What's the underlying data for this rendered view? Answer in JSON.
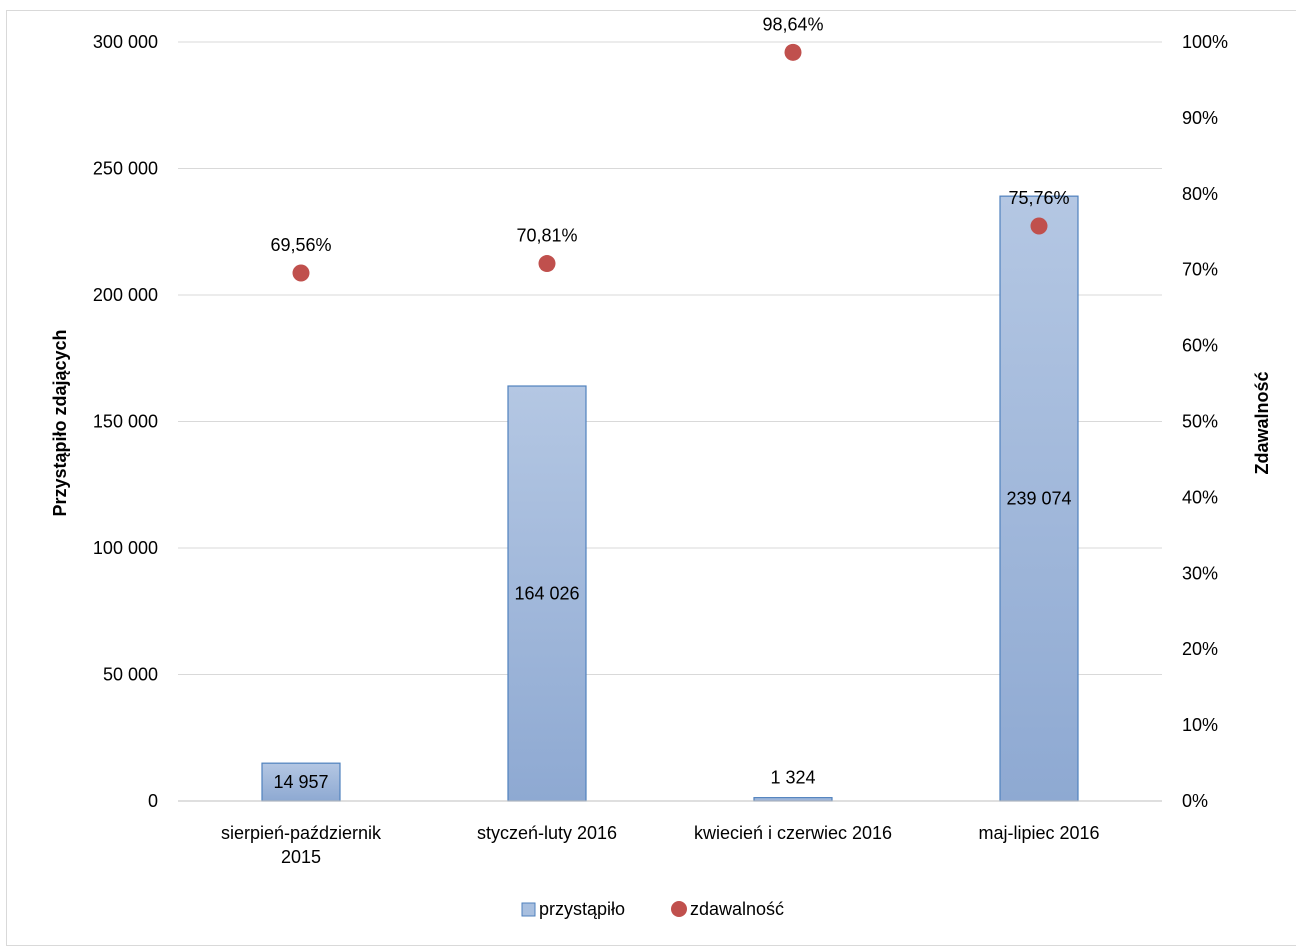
{
  "chart_data": {
    "type": "bar",
    "categories": [
      [
        "sierpień-październik",
        "2015"
      ],
      [
        "styczeń-luty 2016"
      ],
      [
        "kwiecień i czerwiec 2016"
      ],
      [
        "maj-lipiec 2016"
      ]
    ],
    "series": [
      {
        "name": "przystąpiło",
        "type": "bar",
        "axis": "left",
        "values": [
          14957,
          164026,
          1324,
          239074
        ],
        "labels": [
          "14 957",
          "164 026",
          "1 324",
          "239 074"
        ],
        "color": "#95b3d7"
      },
      {
        "name": "zdawalność",
        "type": "scatter",
        "axis": "right",
        "values": [
          69.56,
          70.81,
          98.64,
          75.76
        ],
        "labels": [
          "69,56%",
          "70,81%",
          "98,64%",
          "75,76%"
        ],
        "color": "#c0504d"
      }
    ],
    "ylabel": "Przystąpiło zdających",
    "y2label": "Zdawalność",
    "ylim": [
      0,
      300000
    ],
    "y2lim": [
      0,
      100
    ],
    "yticks": [
      "0",
      "50 000",
      "100 000",
      "150 000",
      "200 000",
      "250 000",
      "300 000"
    ],
    "y2ticks": [
      "0%",
      "10%",
      "20%",
      "30%",
      "40%",
      "50%",
      "60%",
      "70%",
      "80%",
      "90%",
      "100%"
    ],
    "grid": true,
    "legend": "bottom"
  }
}
